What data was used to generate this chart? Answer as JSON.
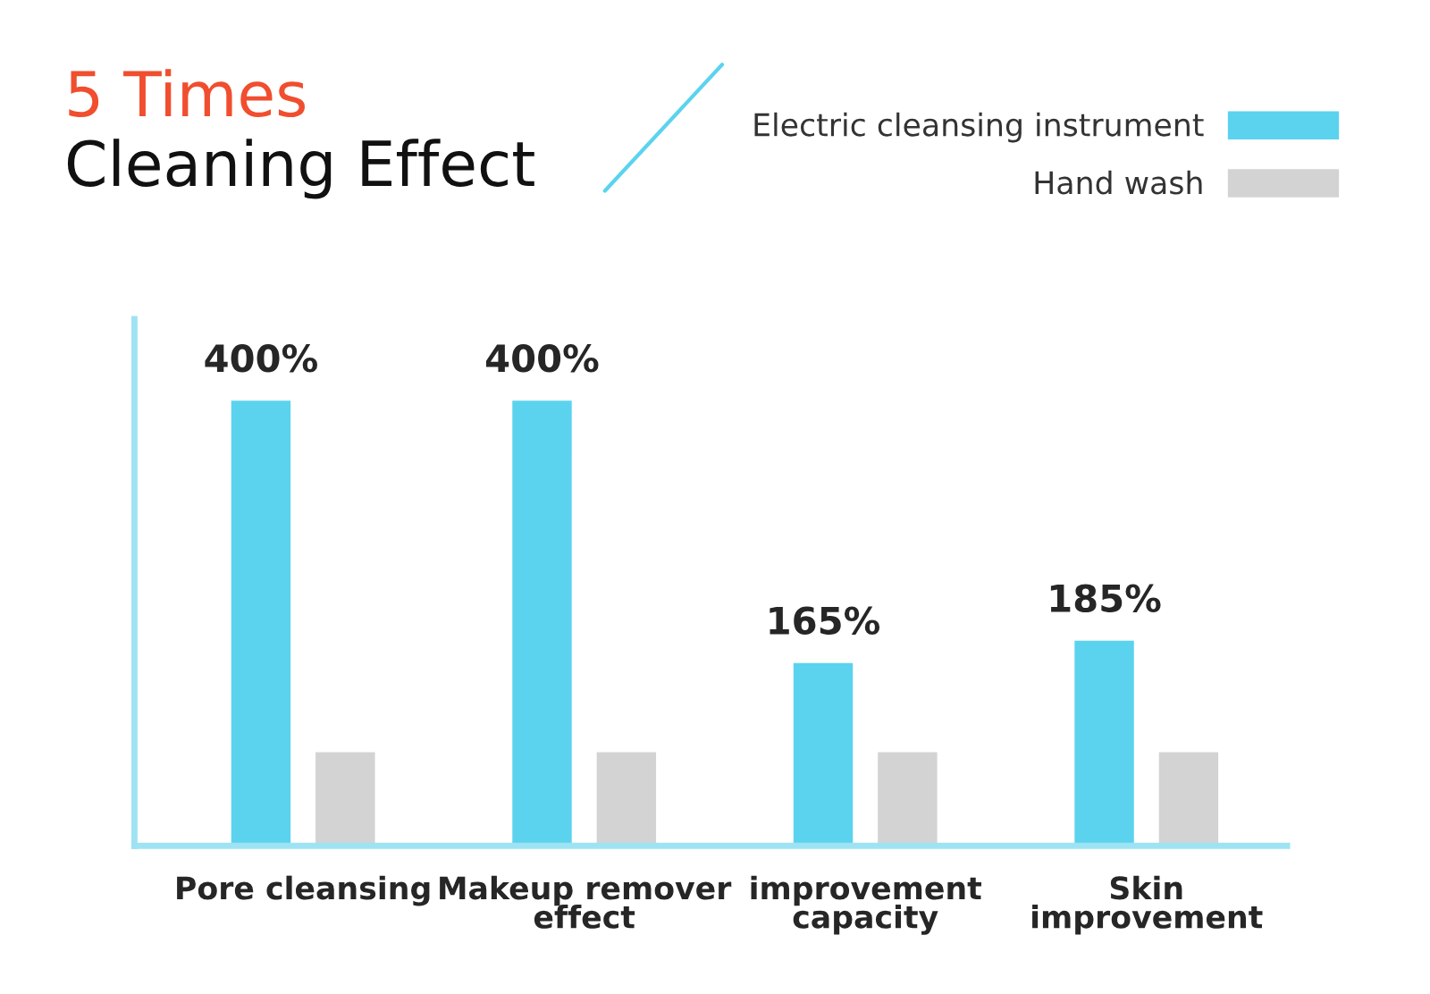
{
  "chart_data": {
    "type": "bar",
    "title": "5 Times",
    "subtitle": "Cleaning Effect",
    "categories": [
      "Pore cleansing",
      "Makeup remover\neffect",
      "improvement\ncapacity",
      "Skin\nimprovement"
    ],
    "series": [
      {
        "name": "Electric cleansing instrument",
        "color": "#5bd3ee",
        "values": [
          400,
          400,
          165,
          185
        ],
        "value_labels": [
          "400%",
          "400%",
          "165%",
          "185%"
        ]
      },
      {
        "name": "Hand wash",
        "color": "#d3d3d3",
        "values": [
          85,
          85,
          85,
          85
        ]
      }
    ],
    "legend": "top right",
    "grid": false
  }
}
